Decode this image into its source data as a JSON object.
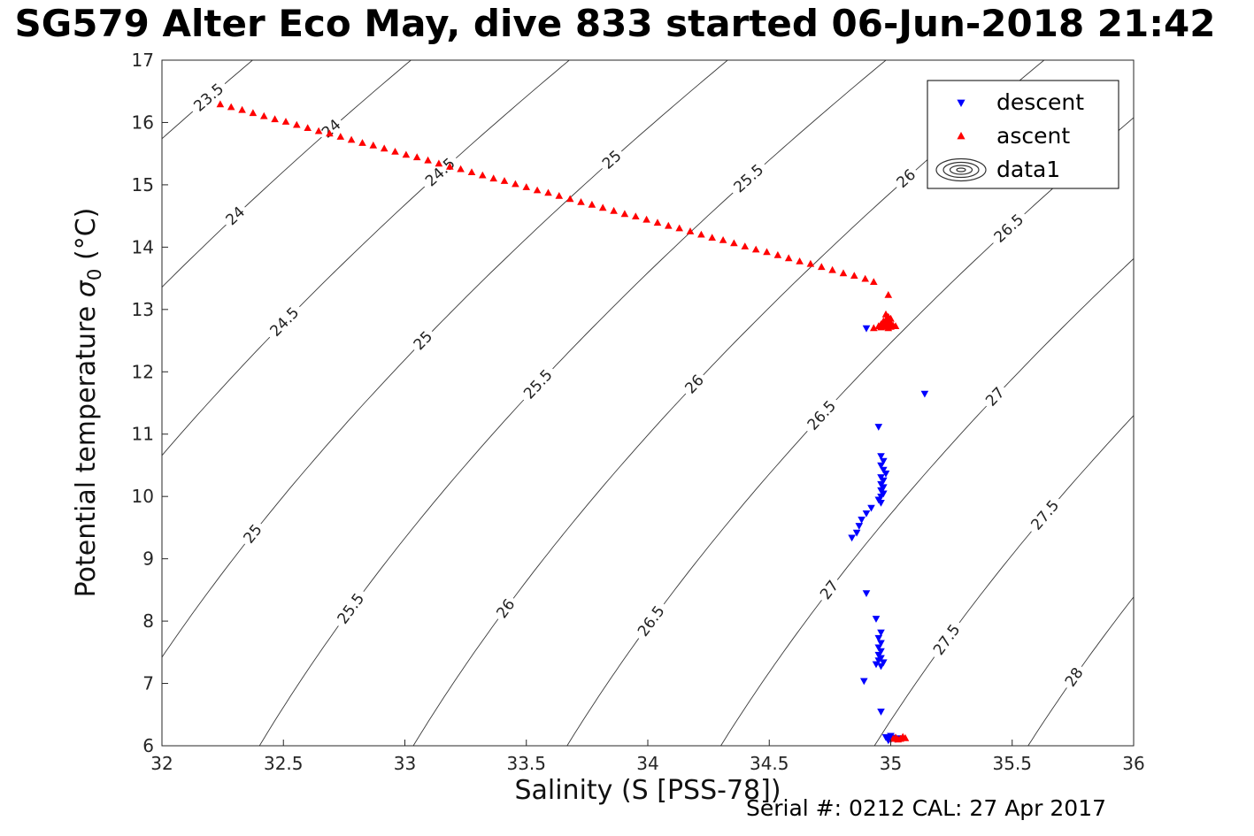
{
  "figure": {
    "title": "SG579 Alter Eco May, dive 833 started 06-Jun-2018 21:42",
    "footer": "Serial #: 0212  CAL: 27 Apr 2017"
  },
  "chart_data": {
    "type": "scatter",
    "subtype": "temperature-salinity-diagram-with-density-contours",
    "title": "SG579 Alter Eco May, dive 833 started 06-Jun-2018 21:42",
    "xlabel": "Salinity (S [PSS-78])",
    "ylabel": "Potential temperature σ0 (°C)",
    "ylabel_parts": {
      "prefix": "Potential temperature ",
      "sigma": "σ",
      "sub": "0",
      "suffix": " (°C)"
    },
    "xlim": [
      32,
      36
    ],
    "ylim": [
      6,
      17
    ],
    "xticks": [
      32,
      32.5,
      33,
      33.5,
      34,
      34.5,
      35,
      35.5,
      36
    ],
    "yticks": [
      6,
      7,
      8,
      9,
      10,
      11,
      12,
      13,
      14,
      15,
      16,
      17
    ],
    "axis_color": "#262626",
    "background": "#ffffff",
    "legend_position": "top-right",
    "legend": [
      {
        "label": "descent",
        "marker": "triangle-down",
        "color": "#0000ff"
      },
      {
        "label": "ascent",
        "marker": "triangle-up",
        "color": "#ff0000"
      },
      {
        "label": "data1",
        "marker": "contour-rings",
        "color": "#333333"
      }
    ],
    "contours": {
      "description": "potential density sigma-0 isopycnals (EOS-80 surface density)",
      "levels": [
        23.5,
        24,
        24.5,
        25,
        25.5,
        26,
        26.5,
        27,
        27.5,
        28
      ],
      "color": "#3a3a3a",
      "label_color": "#222222"
    },
    "series": [
      {
        "name": "descent",
        "marker": "triangle-down",
        "color": "#0000ff",
        "points": [
          [
            35.14,
            11.65
          ],
          [
            34.95,
            11.12
          ],
          [
            34.96,
            10.65
          ],
          [
            34.97,
            10.57
          ],
          [
            34.96,
            10.5
          ],
          [
            34.97,
            10.43
          ],
          [
            34.98,
            10.37
          ],
          [
            34.96,
            10.31
          ],
          [
            34.97,
            10.26
          ],
          [
            34.96,
            10.2
          ],
          [
            34.97,
            10.15
          ],
          [
            34.96,
            10.1
          ],
          [
            34.97,
            10.05
          ],
          [
            34.96,
            10.0
          ],
          [
            34.95,
            9.95
          ],
          [
            34.96,
            9.9
          ],
          [
            34.92,
            9.82
          ],
          [
            34.9,
            9.73
          ],
          [
            34.88,
            9.63
          ],
          [
            34.87,
            9.53
          ],
          [
            34.86,
            9.42
          ],
          [
            34.84,
            9.34
          ],
          [
            34.9,
            12.7
          ],
          [
            34.9,
            8.45
          ],
          [
            34.94,
            8.04
          ],
          [
            34.96,
            7.82
          ],
          [
            34.95,
            7.73
          ],
          [
            34.96,
            7.65
          ],
          [
            34.95,
            7.58
          ],
          [
            34.96,
            7.52
          ],
          [
            34.95,
            7.46
          ],
          [
            34.96,
            7.41
          ],
          [
            34.95,
            7.37
          ],
          [
            34.97,
            7.34
          ],
          [
            34.94,
            7.31
          ],
          [
            34.96,
            7.28
          ],
          [
            34.89,
            7.04
          ],
          [
            34.96,
            6.55
          ],
          [
            34.98,
            6.14
          ],
          [
            34.99,
            6.11
          ],
          [
            35.0,
            6.1
          ],
          [
            35.01,
            6.13
          ],
          [
            35.02,
            6.11
          ],
          [
            35.0,
            6.16
          ],
          [
            34.99,
            6.09
          ],
          [
            35.03,
            6.12
          ]
        ]
      },
      {
        "name": "ascent",
        "marker": "triangle-up",
        "color": "#ff0000",
        "points": [
          [
            32.24,
            16.29
          ],
          [
            32.285,
            16.245
          ],
          [
            32.33,
            16.2
          ],
          [
            32.375,
            16.15
          ],
          [
            32.42,
            16.1
          ],
          [
            32.465,
            16.05
          ],
          [
            32.51,
            16.01
          ],
          [
            32.555,
            15.96
          ],
          [
            32.6,
            15.91
          ],
          [
            32.645,
            15.86
          ],
          [
            32.69,
            15.82
          ],
          [
            32.735,
            15.77
          ],
          [
            32.78,
            15.72
          ],
          [
            32.825,
            15.67
          ],
          [
            32.87,
            15.63
          ],
          [
            32.915,
            15.58
          ],
          [
            32.96,
            15.53
          ],
          [
            33.005,
            15.48
          ],
          [
            33.05,
            15.44
          ],
          [
            33.095,
            15.39
          ],
          [
            33.14,
            15.34
          ],
          [
            33.185,
            15.29
          ],
          [
            33.23,
            15.25
          ],
          [
            33.275,
            15.2
          ],
          [
            33.32,
            15.15
          ],
          [
            33.365,
            15.1
          ],
          [
            33.41,
            15.06
          ],
          [
            33.455,
            15.01
          ],
          [
            33.5,
            14.96
          ],
          [
            33.545,
            14.91
          ],
          [
            33.59,
            14.87
          ],
          [
            33.635,
            14.82
          ],
          [
            33.68,
            14.77
          ],
          [
            33.725,
            14.72
          ],
          [
            33.77,
            14.68
          ],
          [
            33.815,
            14.63
          ],
          [
            33.86,
            14.58
          ],
          [
            33.905,
            14.53
          ],
          [
            33.95,
            14.49
          ],
          [
            33.995,
            14.44
          ],
          [
            34.04,
            14.39
          ],
          [
            34.085,
            14.34
          ],
          [
            34.13,
            14.3
          ],
          [
            34.175,
            14.25
          ],
          [
            34.22,
            14.2
          ],
          [
            34.265,
            14.15
          ],
          [
            34.31,
            14.11
          ],
          [
            34.355,
            14.06
          ],
          [
            34.4,
            14.01
          ],
          [
            34.445,
            13.96
          ],
          [
            34.49,
            13.92
          ],
          [
            34.535,
            13.87
          ],
          [
            34.58,
            13.82
          ],
          [
            34.625,
            13.77
          ],
          [
            34.67,
            13.73
          ],
          [
            34.715,
            13.68
          ],
          [
            34.76,
            13.63
          ],
          [
            34.805,
            13.58
          ],
          [
            34.85,
            13.54
          ],
          [
            34.895,
            13.49
          ],
          [
            34.93,
            13.44
          ],
          [
            34.99,
            13.23
          ],
          [
            34.98,
            12.92
          ],
          [
            34.99,
            12.88
          ],
          [
            35.0,
            12.85
          ],
          [
            34.98,
            12.83
          ],
          [
            34.97,
            12.81
          ],
          [
            34.99,
            12.8
          ],
          [
            35.0,
            12.78
          ],
          [
            34.98,
            12.77
          ],
          [
            34.96,
            12.76
          ],
          [
            34.99,
            12.75
          ],
          [
            35.01,
            12.74
          ],
          [
            34.97,
            12.74
          ],
          [
            34.95,
            12.73
          ],
          [
            34.98,
            12.72
          ],
          [
            35.0,
            12.72
          ],
          [
            34.96,
            12.71
          ],
          [
            34.93,
            12.7
          ],
          [
            34.99,
            12.7
          ],
          [
            35.02,
            12.73
          ],
          [
            35.02,
            6.13
          ],
          [
            35.04,
            6.11
          ],
          [
            35.05,
            6.14
          ],
          [
            35.03,
            6.1
          ],
          [
            35.06,
            6.12
          ],
          [
            35.01,
            6.11
          ]
        ]
      }
    ]
  }
}
